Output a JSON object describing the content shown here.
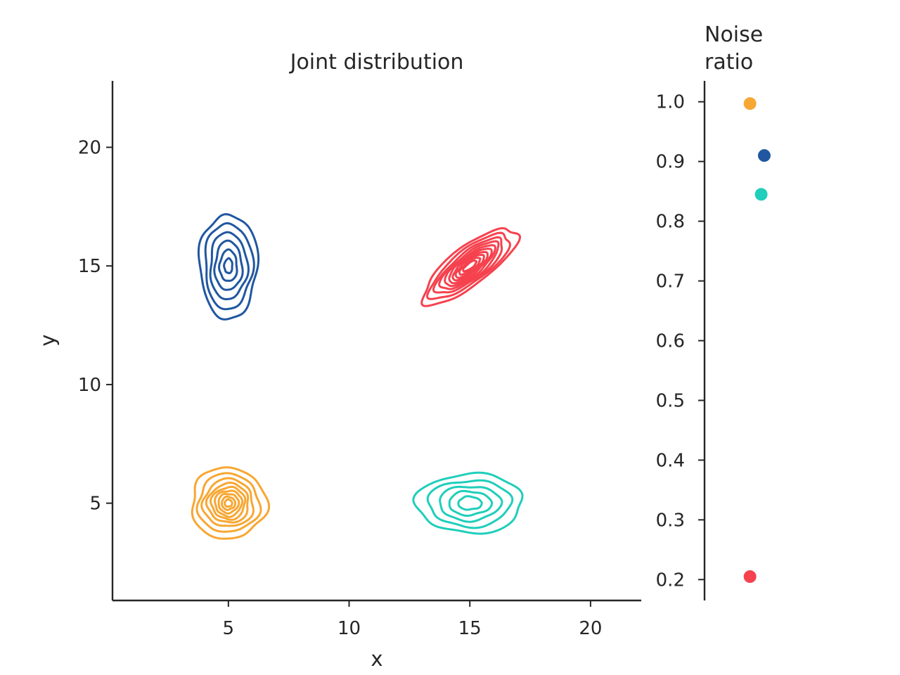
{
  "chart_data": [
    {
      "type": "contour",
      "title": "Joint distribution",
      "xlabel": "x",
      "ylabel": "y",
      "xlim": [
        0.2,
        22.1
      ],
      "ylim": [
        0.9,
        22.8
      ],
      "xticks": [
        5,
        10,
        15,
        20
      ],
      "yticks": [
        5,
        10,
        15,
        20
      ],
      "grid": false,
      "series": [
        {
          "color": "#2057a0",
          "center": [
            5.0,
            15.0
          ],
          "spread": [
            1.2,
            2.2
          ],
          "rotation": 0,
          "levels": [
            1.0,
            0.82,
            0.64,
            0.47,
            0.3,
            0.14
          ],
          "noise_ratio": 0.91
        },
        {
          "color": "#f7a733",
          "center": [
            5.0,
            5.0
          ],
          "spread": [
            1.55,
            1.5
          ],
          "rotation": 0,
          "levels": [
            1.0,
            0.82,
            0.67,
            0.55,
            0.45,
            0.36,
            0.27,
            0.18,
            0.1
          ],
          "noise_ratio": 1.0
        },
        {
          "color": "#f5424e",
          "center": [
            15.0,
            15.0
          ],
          "spread": [
            2.4,
            0.8
          ],
          "rotation": 38,
          "levels": [
            1.0,
            0.85,
            0.72,
            0.62,
            0.53,
            0.45,
            0.37,
            0.3,
            0.22,
            0.14
          ],
          "noise_ratio": 0.2
        },
        {
          "color": "#1fcebb",
          "center": [
            15.0,
            5.0
          ],
          "spread": [
            2.2,
            1.25
          ],
          "rotation": 0,
          "levels": [
            1.0,
            0.78,
            0.58,
            0.4,
            0.22
          ],
          "noise_ratio": 0.85
        }
      ]
    },
    {
      "type": "strip",
      "title": "Noise\nratio",
      "ylim": [
        0.165,
        1.035
      ],
      "yticks": [
        0.2,
        0.3,
        0.4,
        0.5,
        0.6,
        0.7,
        0.8,
        0.9,
        1.0
      ],
      "points": [
        {
          "value": 0.997,
          "color": "#f7a733",
          "jitter": -0.15
        },
        {
          "value": 0.91,
          "color": "#2057a0",
          "jitter": 0.55
        },
        {
          "value": 0.845,
          "color": "#1fcebb",
          "jitter": 0.4
        },
        {
          "value": 0.205,
          "color": "#f5424e",
          "jitter": -0.15
        }
      ]
    }
  ]
}
